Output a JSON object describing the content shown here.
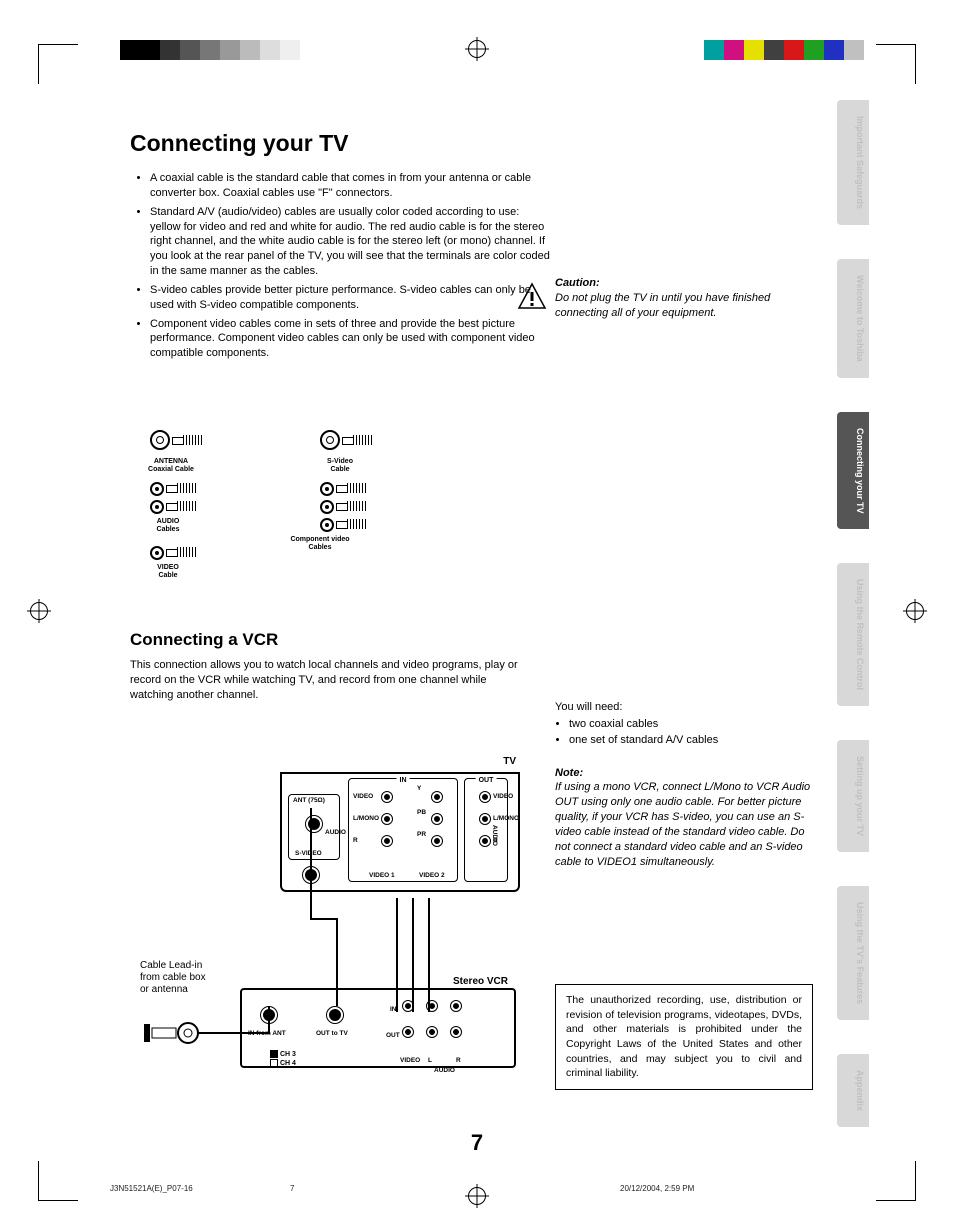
{
  "colorbar_left": [
    "#000000",
    "#000000",
    "#333333",
    "#555555",
    "#777777",
    "#999999",
    "#bbbbbb",
    "#dddddd",
    "#efefef"
  ],
  "colorbar_right": [
    "#00a0a0",
    "#d01080",
    "#e6e000",
    "#404040",
    "#d81818",
    "#20a020",
    "#2030c0",
    "#c0c0c0"
  ],
  "title": "Connecting your TV",
  "bullets": [
    "A coaxial cable is the standard cable that comes in from your antenna or cable converter box. Coaxial cables use \"F\" connectors.",
    "Standard A/V (audio/video) cables are usually color coded according to use: yellow for video and red and white for audio. The red audio cable is for the stereo right channel, and the white audio cable is for the stereo left (or mono) channel. If you look at the rear panel of the TV, you will see that the terminals are color coded in the same manner as the cables.",
    "S-video cables provide better picture performance. S-video cables can only be used with S-video compatible components.",
    "Component video cables come in sets of three and provide the best picture performance. Component video cables can only be used with component video compatible components."
  ],
  "cables_labels": {
    "antenna": "ANTENNA\nCoaxial Cable",
    "audio": "AUDIO\nCables",
    "video": "VIDEO\nCable",
    "svideo": "S-Video\nCable",
    "component": "Component video\nCables"
  },
  "caution_h": "Caution:",
  "caution": "Do not plug the TV in until you have finished connecting all of your equipment.",
  "vcr_h": "Connecting a VCR",
  "vcr_intro": "This connection allows you to watch local channels and video programs, play or record on the VCR while watching TV, and record from one channel while watching another channel.",
  "need_h": "You will need:",
  "need": [
    "two coaxial cables",
    "one set of standard A/V cables"
  ],
  "note_h": "Note:",
  "note": "If using a mono VCR, connect L/Mono to VCR Audio OUT using only one audio cable. For better picture quality, if your VCR has S-video, you can use an S-video cable instead of the standard video cable. Do not connect a standard video cable and an S-video cable to VIDEO1 simultaneously.",
  "legal": "The unauthorized recording, use, distribution or revision of television programs, videotapes, DVDs, and other materials is prohibited under the Copyright Laws of the United States and other countries, and may subject you to civil and criminal liability.",
  "diagram": {
    "tv": "TV",
    "in": "IN",
    "out": "OUT",
    "ant": "ANT (75Ω)",
    "svideo": "S-VIDEO",
    "video": "VIDEO",
    "lmono": "L/MONO",
    "r": "R",
    "audio": "AUDIO",
    "y": "Y",
    "pb": "PB",
    "pr": "PR",
    "video1": "VIDEO 1",
    "video2": "VIDEO 2",
    "stereo_vcr": "Stereo VCR",
    "in_from_ant": "IN from ANT",
    "out_to_tv": "OUT to TV",
    "ch3": "CH 3",
    "ch4": "CH 4",
    "v": "VIDEO",
    "l": "L",
    "aud": "AUDIO",
    "rr": "R",
    "lead": "Cable Lead-in\nfrom cable box\nor antenna"
  },
  "tabs": [
    "Important Safeguards",
    "Welcome to Toshiba",
    "Connecting your TV",
    "Using the Remote Control",
    "Setting up your TV",
    "Using the TV's Features",
    "Appendix"
  ],
  "active_tab": 2,
  "pagenum": "7",
  "footer_l": "J3N51521A(E)_P07-16",
  "footer_c": "7",
  "footer_r": "20/12/2004, 2:59 PM"
}
